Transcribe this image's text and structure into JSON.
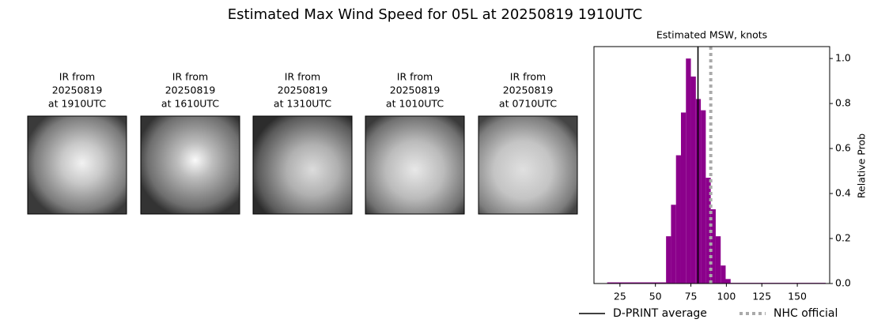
{
  "chart_data": {
    "type": "histogram",
    "title": "Estimated Max Wind Speed for 05L at 20250819 1910UTC",
    "panels": [
      {
        "lines": [
          "IR from",
          "20250819",
          "at 1910UTC"
        ]
      },
      {
        "lines": [
          "IR from",
          "20250819",
          "at 1610UTC"
        ]
      },
      {
        "lines": [
          "IR from",
          "20250819",
          "at 1310UTC"
        ]
      },
      {
        "lines": [
          "IR from",
          "20250819",
          "at 1010UTC"
        ]
      },
      {
        "lines": [
          "IR from",
          "20250819",
          "at 0710UTC"
        ]
      }
    ],
    "hist_title": "Estimated MSW, knots",
    "ylabel": "Relative Prob",
    "color": "#8b008b",
    "bins": [
      16,
      57.5,
      61,
      64.5,
      68,
      71.5,
      75,
      78.5,
      82,
      85.5,
      89,
      92.5,
      96,
      99.5,
      103,
      170
    ],
    "counts": [
      0.005,
      0.21,
      0.35,
      0.57,
      0.76,
      1.0,
      0.92,
      0.82,
      0.77,
      0.47,
      0.33,
      0.21,
      0.08,
      0.02,
      0.003
    ],
    "xlim": [
      6.7,
      172.8
    ],
    "xticks": [
      25,
      50,
      75,
      100,
      125,
      150
    ],
    "ylim": [
      0,
      1.053
    ],
    "yticks": [
      {
        "value": 0,
        "label": "0.0"
      },
      {
        "value": 0.2,
        "label": "0.2"
      },
      {
        "value": 0.4,
        "label": "0.4"
      },
      {
        "value": 0.6,
        "label": "0.6"
      },
      {
        "value": 0.8,
        "label": "0.8"
      },
      {
        "value": 1.0,
        "label": "1.0"
      }
    ],
    "lines": [
      {
        "name": "D-PRINT average",
        "value": 80,
        "color": "#000000",
        "style": "solid"
      },
      {
        "name": "NHC official",
        "value": 89,
        "color": "#aaaaaa",
        "style": "dotted"
      }
    ]
  }
}
